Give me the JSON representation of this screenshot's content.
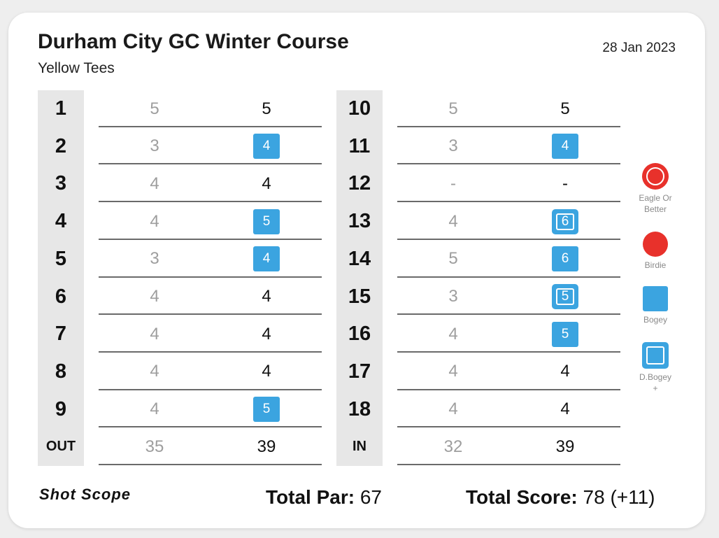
{
  "header": {
    "course_name": "Durham City GC Winter Course",
    "tees": "Yellow Tees",
    "date": "28 Jan 2023"
  },
  "front_nine": [
    {
      "hole": "1",
      "par": "5",
      "score": "5",
      "result": "par"
    },
    {
      "hole": "2",
      "par": "3",
      "score": "4",
      "result": "bogey"
    },
    {
      "hole": "3",
      "par": "4",
      "score": "4",
      "result": "par"
    },
    {
      "hole": "4",
      "par": "4",
      "score": "5",
      "result": "bogey"
    },
    {
      "hole": "5",
      "par": "3",
      "score": "4",
      "result": "bogey"
    },
    {
      "hole": "6",
      "par": "4",
      "score": "4",
      "result": "par"
    },
    {
      "hole": "7",
      "par": "4",
      "score": "4",
      "result": "par"
    },
    {
      "hole": "8",
      "par": "4",
      "score": "4",
      "result": "par"
    },
    {
      "hole": "9",
      "par": "4",
      "score": "5",
      "result": "bogey"
    }
  ],
  "back_nine": [
    {
      "hole": "10",
      "par": "5",
      "score": "5",
      "result": "par"
    },
    {
      "hole": "11",
      "par": "3",
      "score": "4",
      "result": "bogey"
    },
    {
      "hole": "12",
      "par": "-",
      "score": "-",
      "result": "none"
    },
    {
      "hole": "13",
      "par": "4",
      "score": "6",
      "result": "double-bogey"
    },
    {
      "hole": "14",
      "par": "5",
      "score": "6",
      "result": "bogey"
    },
    {
      "hole": "15",
      "par": "3",
      "score": "5",
      "result": "double-bogey"
    },
    {
      "hole": "16",
      "par": "4",
      "score": "5",
      "result": "bogey"
    },
    {
      "hole": "17",
      "par": "4",
      "score": "4",
      "result": "par"
    },
    {
      "hole": "18",
      "par": "4",
      "score": "4",
      "result": "par"
    }
  ],
  "out_total": {
    "label": "OUT",
    "par": "35",
    "score": "39"
  },
  "in_total": {
    "label": "IN",
    "par": "32",
    "score": "39"
  },
  "legend": [
    {
      "type": "eagle",
      "label_lines": [
        "Eagle Or",
        "Better"
      ],
      "color": "#e8312b"
    },
    {
      "type": "birdie",
      "label_lines": [
        "Birdie"
      ],
      "color": "#e8312b"
    },
    {
      "type": "bogey",
      "label_lines": [
        "Bogey"
      ],
      "color": "#3ba4e0"
    },
    {
      "type": "double-bogey",
      "label_lines": [
        "D.Bogey",
        "+"
      ],
      "color": "#3ba4e0"
    }
  ],
  "footer": {
    "brand": "Shot Scope",
    "total_par_label": "Total Par:",
    "total_par_value": "67",
    "total_score_label": "Total Score:",
    "total_score_value": "78 (+11)"
  },
  "colors": {
    "bogey": "#3ba4e0",
    "birdie": "#e8312b",
    "hole_column_bg": "#e7e7e7",
    "par_text": "#9e9e9e"
  }
}
